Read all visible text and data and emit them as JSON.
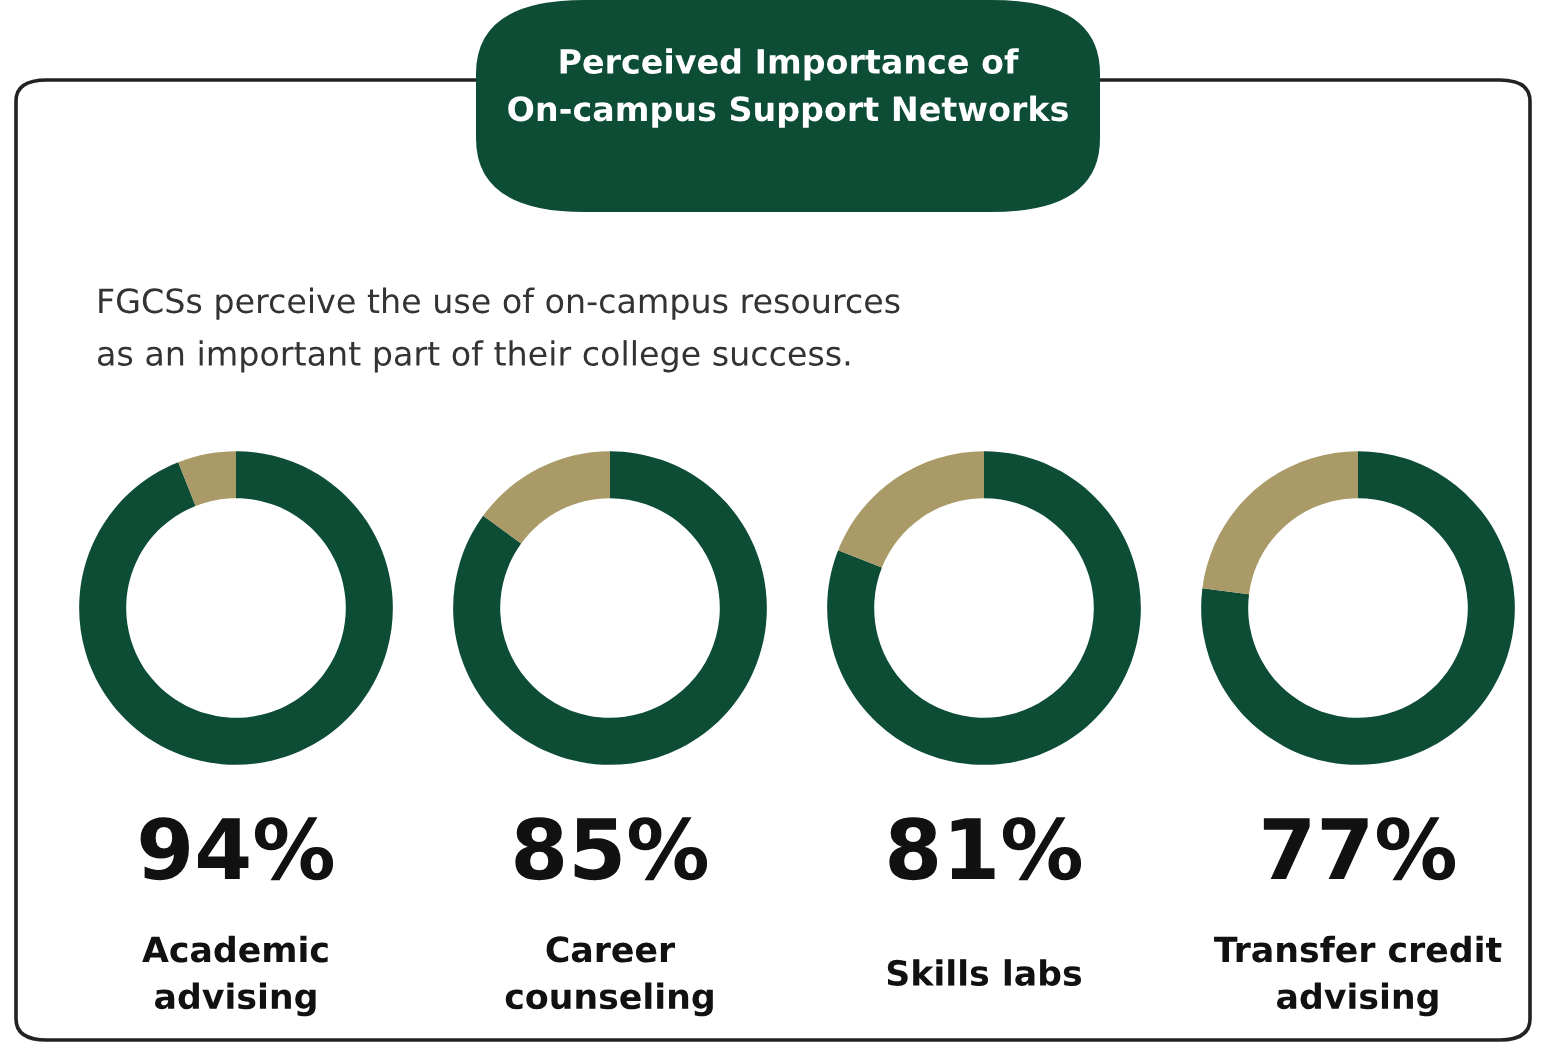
{
  "chart_data": [
    {
      "type": "other",
      "title": "Perceived Importance of On-campus Support Networks",
      "subtitle": "FGCSs perceive the use of on-campus resources as an important part of their college success."
    },
    {
      "type": "donut",
      "title": "Academic advising",
      "categories": [
        null,
        null
      ],
      "values": [
        94,
        6
      ],
      "colors": [
        "#0d4d35",
        "#a99a68"
      ],
      "value_labels": [
        "94%",
        null
      ]
    },
    {
      "type": "donut",
      "title": "Career counseling",
      "categories": [
        null,
        null
      ],
      "values": [
        85,
        15
      ],
      "colors": [
        "#0d4d35",
        "#a99a68"
      ],
      "value_labels": [
        "85%",
        null
      ]
    },
    {
      "type": "donut",
      "title": "Skills labs",
      "categories": [
        null,
        null
      ],
      "values": [
        81,
        19
      ],
      "colors": [
        "#0d4d35",
        "#a99a68"
      ],
      "value_labels": [
        "81%",
        null
      ]
    },
    {
      "type": "donut",
      "title": "Transfer credit advising",
      "categories": [
        null,
        null
      ],
      "values": [
        77,
        23
      ],
      "colors": [
        "#0d4d35",
        "#a99a68"
      ],
      "value_labels": [
        "77%",
        null
      ]
    }
  ]
}
